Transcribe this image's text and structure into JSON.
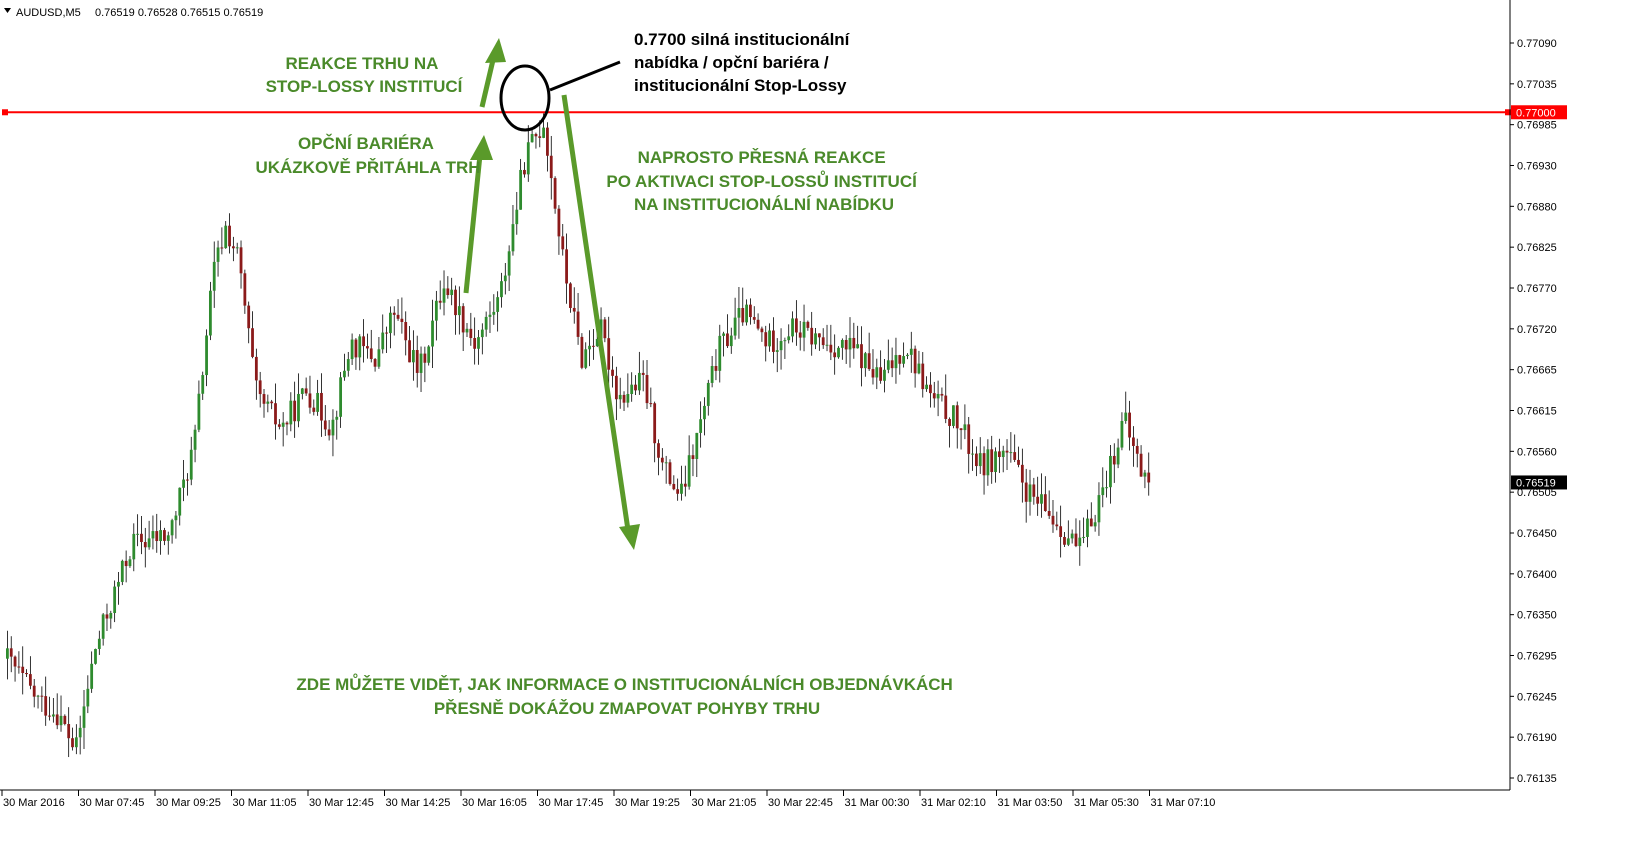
{
  "header": {
    "symbol": "AUDUSD,M5",
    "ohlc": "0.76519 0.76528 0.76515 0.76519"
  },
  "colors": {
    "bull": "#2e8b2e",
    "bear": "#8b1a1a",
    "level_line": "#ff0000",
    "annotation": "#4a8a2a",
    "arrow": "#5a9a2a",
    "axis": "#000000"
  },
  "chart_data": {
    "type": "candlestick",
    "title": "",
    "xlabel": "",
    "ylabel": "",
    "ylim": [
      0.76105,
      0.77125
    ],
    "y_ticks": [
      "0.77090",
      "0.77035",
      "0.76985",
      "0.76930",
      "0.76880",
      "0.76825",
      "0.76770",
      "0.76720",
      "0.76665",
      "0.76615",
      "0.76560",
      "0.76505",
      "0.76450",
      "0.76400",
      "0.76350",
      "0.76295",
      "0.76245",
      "0.76190",
      "0.76135"
    ],
    "x_tick_labels": [
      "30 Mar 2016",
      "30 Mar 07:45",
      "30 Mar 09:25",
      "30 Mar 11:05",
      "30 Mar 12:45",
      "30 Mar 14:25",
      "30 Mar 16:05",
      "30 Mar 17:45",
      "30 Mar 19:25",
      "30 Mar 21:05",
      "30 Mar 22:45",
      "31 Mar 00:30",
      "31 Mar 02:10",
      "31 Mar 03:50",
      "31 Mar 05:30",
      "31 Mar 07:10"
    ],
    "candles_per_label": 20,
    "candle_count": 299,
    "level": {
      "value": 0.77,
      "label": "0.77000"
    },
    "current_price": {
      "value": 0.76519,
      "label": "0.76519"
    },
    "close_path": [
      [
        0,
        0.7629
      ],
      [
        10,
        0.76235
      ],
      [
        16,
        0.7622
      ],
      [
        22,
        0.7617
      ],
      [
        28,
        0.763
      ],
      [
        40,
        0.7644
      ],
      [
        52,
        0.7645
      ],
      [
        60,
        0.7657
      ],
      [
        66,
        0.7679
      ],
      [
        70,
        0.7685
      ],
      [
        74,
        0.7681
      ],
      [
        80,
        0.7663
      ],
      [
        88,
        0.7659
      ],
      [
        96,
        0.7664
      ],
      [
        104,
        0.7659
      ],
      [
        110,
        0.767
      ],
      [
        118,
        0.7668
      ],
      [
        124,
        0.7674
      ],
      [
        132,
        0.7666
      ],
      [
        140,
        0.7678
      ],
      [
        150,
        0.767
      ],
      [
        158,
        0.7676
      ],
      [
        166,
        0.7694
      ],
      [
        172,
        0.7699
      ],
      [
        178,
        0.7681
      ],
      [
        184,
        0.7668
      ],
      [
        190,
        0.7672
      ],
      [
        196,
        0.7663
      ],
      [
        204,
        0.7665
      ],
      [
        210,
        0.7654
      ],
      [
        216,
        0.765
      ],
      [
        222,
        0.7659
      ],
      [
        228,
        0.7669
      ],
      [
        236,
        0.7674
      ],
      [
        244,
        0.767
      ],
      [
        252,
        0.7672
      ],
      [
        262,
        0.767
      ],
      [
        272,
        0.7669
      ],
      [
        280,
        0.7665
      ],
      [
        288,
        0.767
      ],
      [
        296,
        0.7663
      ],
      [
        304,
        0.766
      ],
      [
        312,
        0.7654
      ],
      [
        320,
        0.7656
      ],
      [
        328,
        0.765
      ],
      [
        336,
        0.7647
      ],
      [
        344,
        0.7643
      ],
      [
        352,
        0.7652
      ],
      [
        358,
        0.766
      ],
      [
        364,
        0.7653
      ],
      [
        366,
        0.76519
      ]
    ],
    "annotations": [
      {
        "lines": [
          "REAKCE TRHU NA",
          "STOP-LOSSY INSTITUCÍ"
        ],
        "color": "green"
      },
      {
        "lines": [
          "OPČNÍ BARIÉRA",
          "UKÁZKOVĚ PŘITÁHLA TRH"
        ],
        "color": "green"
      },
      {
        "lines": [
          "0.7700 silná institucionální",
          "nabídka / opční bariéra /",
          "institucionální Stop-Lossy"
        ],
        "color": "black"
      },
      {
        "lines": [
          "NAPROSTO PŘESNÁ REAKCE",
          "PO AKTIVACI STOP-LOSSŮ INSTITUCÍ",
          "NA INSTITUCIONÁLNÍ NABÍDKU"
        ],
        "color": "green"
      },
      {
        "lines": [
          "ZDE MŮŽETE VIDĚT, JAK INFORMACE O INSTITUCIONÁLNÍCH OBJEDNÁVKÁCH",
          "PŘESNĚ DOKÁŽOU ZMAPOVAT POHYBY TRHU"
        ],
        "color": "green"
      }
    ]
  }
}
